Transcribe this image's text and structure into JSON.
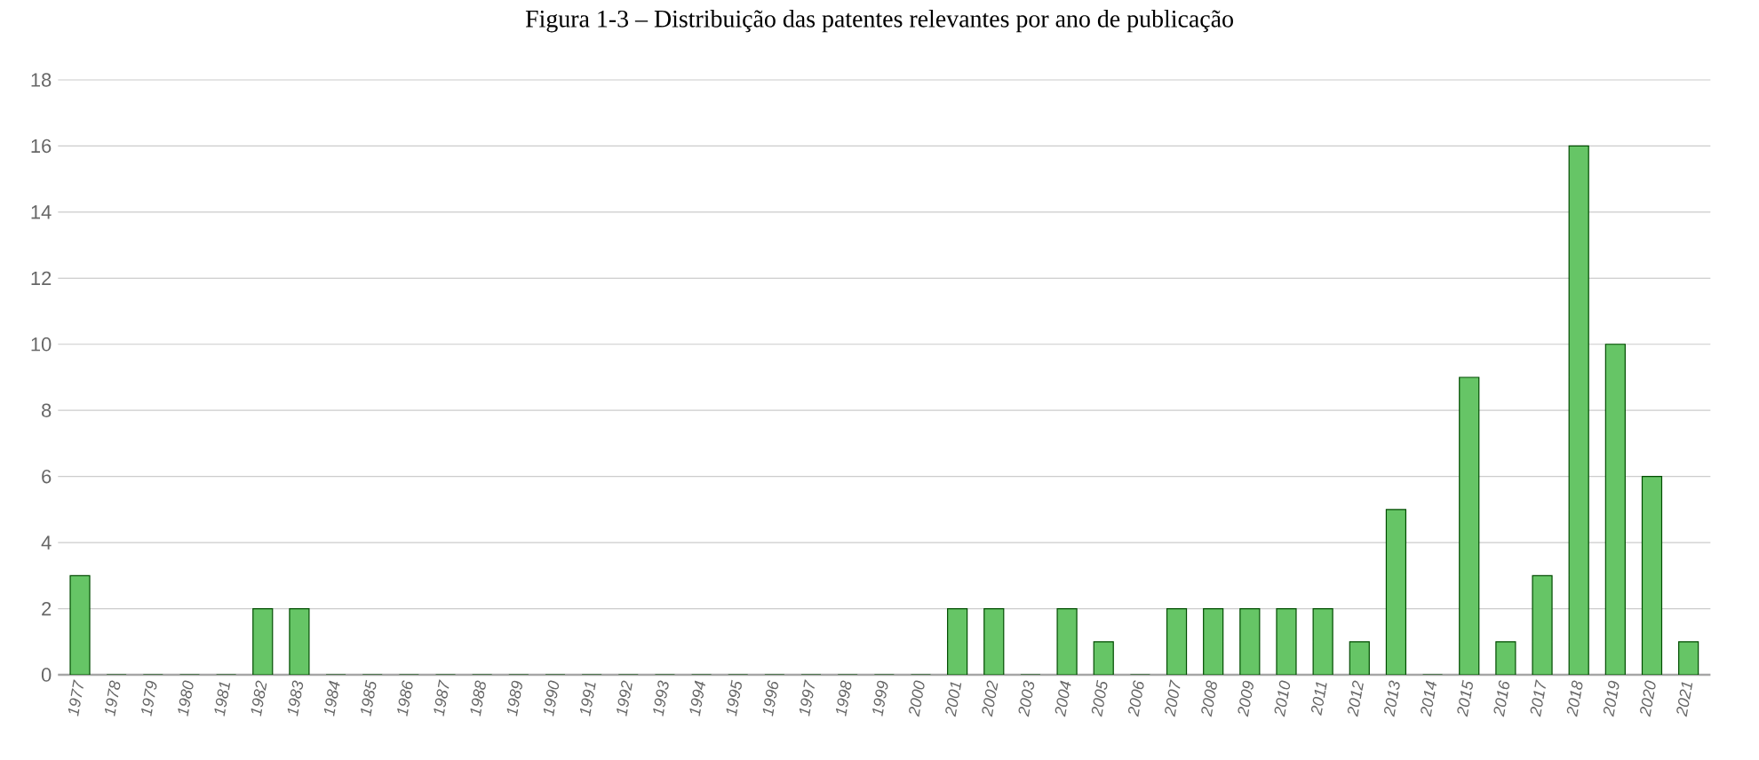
{
  "chart_data": {
    "type": "bar",
    "title": "Figura 1-3 – Distribuição das patentes relevantes por ano de publicação",
    "categories": [
      "1977",
      "1978",
      "1979",
      "1980",
      "1981",
      "1982",
      "1983",
      "1984",
      "1985",
      "1986",
      "1987",
      "1988",
      "1989",
      "1990",
      "1991",
      "1992",
      "1993",
      "1994",
      "1995",
      "1996",
      "1997",
      "1998",
      "1999",
      "2000",
      "2001",
      "2002",
      "2003",
      "2004",
      "2005",
      "2006",
      "2007",
      "2008",
      "2009",
      "2010",
      "2011",
      "2012",
      "2013",
      "2014",
      "2015",
      "2016",
      "2017",
      "2018",
      "2019",
      "2020",
      "2021"
    ],
    "values": [
      3,
      0,
      0,
      0,
      0,
      2,
      2,
      0,
      0,
      0,
      0,
      0,
      0,
      0,
      0,
      0,
      0,
      0,
      0,
      0,
      0,
      0,
      0,
      0,
      2,
      2,
      0,
      2,
      1,
      0,
      2,
      2,
      2,
      2,
      2,
      1,
      5,
      0,
      9,
      1,
      3,
      16,
      10,
      6,
      1
    ],
    "color": "#66c566",
    "ylim": [
      0,
      18
    ],
    "yticks": [
      0,
      2,
      4,
      6,
      8,
      10,
      12,
      14,
      16,
      18
    ],
    "grid": "y"
  }
}
